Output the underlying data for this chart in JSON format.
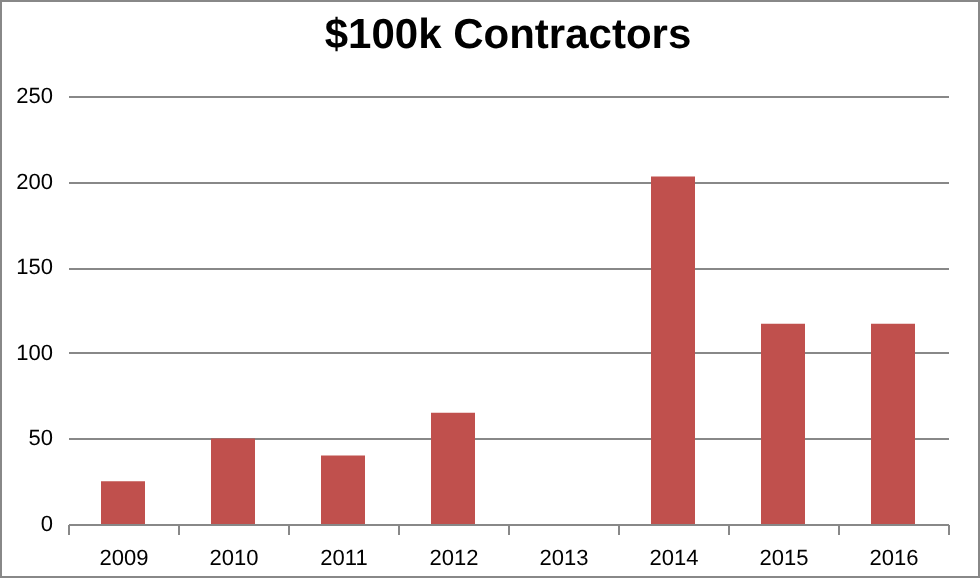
{
  "chart_data": {
    "type": "bar",
    "title": "$100k Contractors",
    "categories": [
      "2009",
      "2010",
      "2011",
      "2012",
      "2013",
      "2014",
      "2015",
      "2016"
    ],
    "values": [
      25,
      50,
      40,
      65,
      0,
      203,
      117,
      117
    ],
    "color": "#c0504d",
    "ylim": [
      0,
      250
    ],
    "yticks": [
      0,
      50,
      100,
      150,
      200,
      250
    ],
    "grid": "y"
  }
}
